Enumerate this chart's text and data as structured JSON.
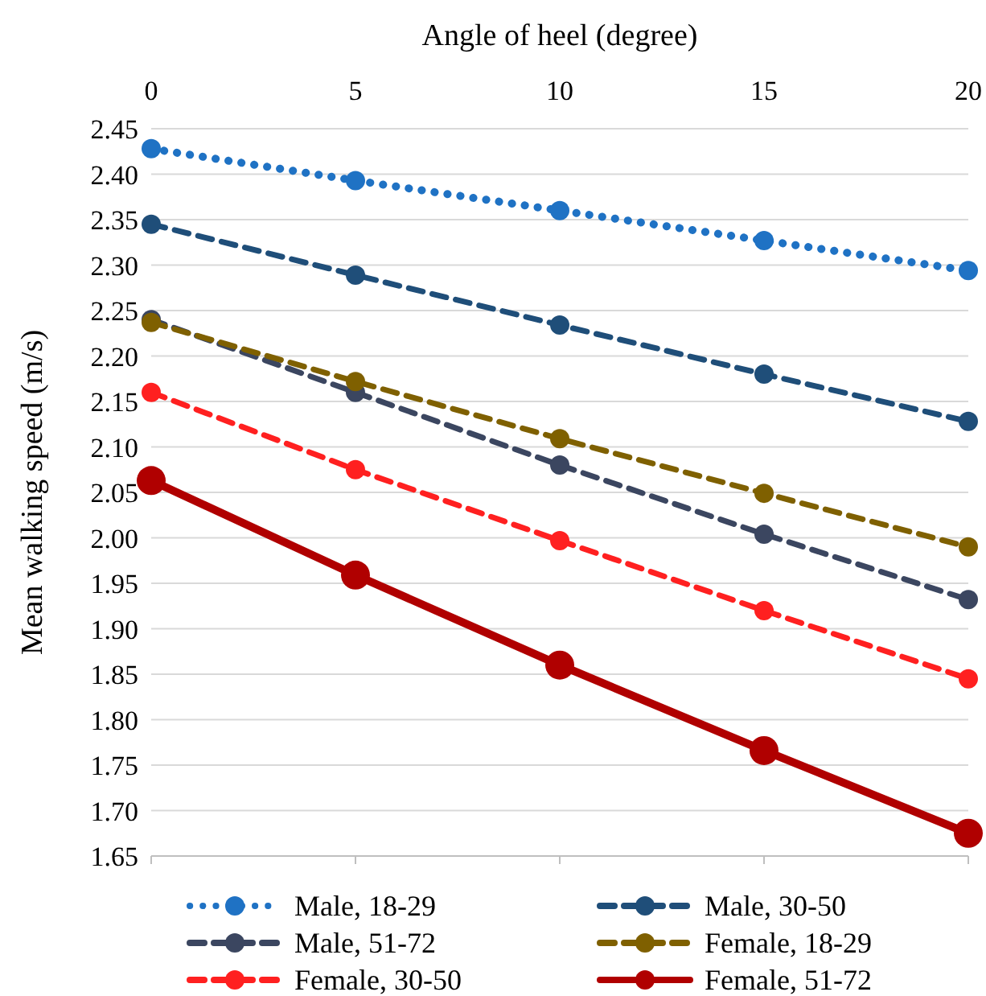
{
  "chart_data": {
    "type": "line",
    "xlabel": "Angle of heel (degree)",
    "ylabel": "Mean walking speed (m/s)",
    "x": [
      0,
      5,
      10,
      15,
      20
    ],
    "xlim": [
      0,
      20
    ],
    "xticks": [
      0,
      5,
      10,
      15,
      20
    ],
    "ylim": [
      1.65,
      2.45
    ],
    "yticks": [
      {
        "value": 1.65,
        "label": "1.65"
      },
      {
        "value": 1.7,
        "label": "1.70"
      },
      {
        "value": 1.75,
        "label": "1.75"
      },
      {
        "value": 1.8,
        "label": "1.80"
      },
      {
        "value": 1.85,
        "label": "1.85"
      },
      {
        "value": 1.9,
        "label": "1.90"
      },
      {
        "value": 1.95,
        "label": "1.95"
      },
      {
        "value": 2.0,
        "label": "2.00"
      },
      {
        "value": 2.05,
        "label": "2.05"
      },
      {
        "value": 2.1,
        "label": "2.10"
      },
      {
        "value": 2.15,
        "label": "2.15"
      },
      {
        "value": 2.2,
        "label": "2.20"
      },
      {
        "value": 2.25,
        "label": "2.25"
      },
      {
        "value": 2.3,
        "label": "2.30"
      },
      {
        "value": 2.35,
        "label": "2.35"
      },
      {
        "value": 2.4,
        "label": "2.40"
      },
      {
        "value": 2.45,
        "label": "2.45"
      }
    ],
    "grid": "y",
    "legend": "bottom",
    "marker": "circle",
    "series": [
      {
        "name": "Male, 18-29",
        "color": "#1f72c4",
        "line_style": "dotted",
        "values": [
          2.428,
          2.393,
          2.36,
          2.327,
          2.294
        ]
      },
      {
        "name": "Male, 30-50",
        "color": "#1f4e79",
        "line_style": "dashed",
        "values": [
          2.345,
          2.289,
          2.234,
          2.18,
          2.128
        ]
      },
      {
        "name": "Male, 51-72",
        "color": "#3b4660",
        "line_style": "dashed",
        "values": [
          2.24,
          2.16,
          2.08,
          2.004,
          1.932
        ]
      },
      {
        "name": "Female, 18-29",
        "color": "#7f6000",
        "line_style": "dashed",
        "values": [
          2.237,
          2.172,
          2.109,
          2.049,
          1.99
        ]
      },
      {
        "name": "Female, 30-50",
        "color": "#ff2020",
        "line_style": "dashed",
        "values": [
          2.16,
          2.075,
          1.997,
          1.92,
          1.845
        ]
      },
      {
        "name": "Female, 51-72",
        "color": "#b00000",
        "line_style": "solid",
        "values": [
          2.063,
          1.959,
          1.86,
          1.766,
          1.675
        ]
      }
    ]
  }
}
